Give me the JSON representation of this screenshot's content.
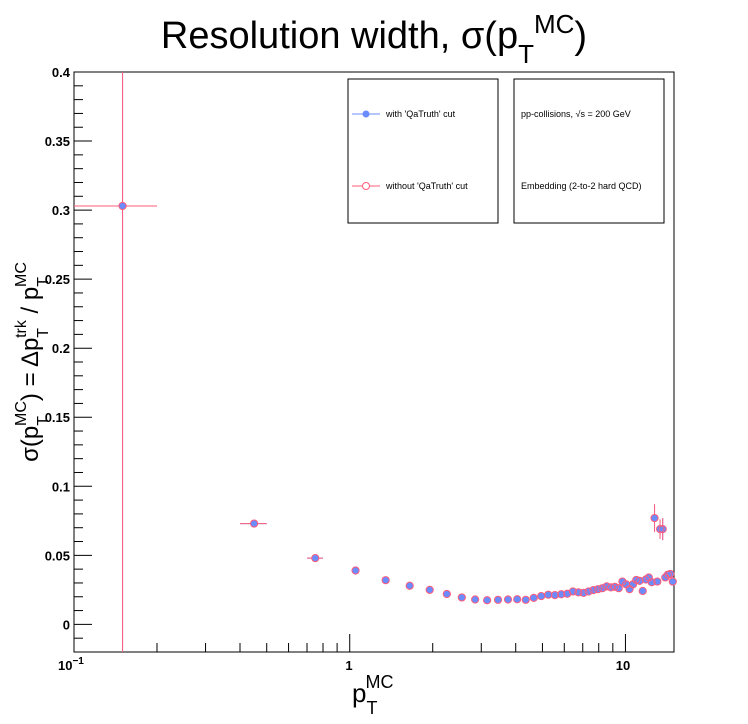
{
  "colors": {
    "series_with": "#6b8cff",
    "series_without": "#ff5c7a",
    "frame": "#000000",
    "background": "#ffffff"
  },
  "chart_data": {
    "type": "scatter",
    "title_main": "Resolution width, σ(p",
    "title_sub": "T",
    "title_sup": "MC",
    "title_close": ")",
    "xlabel": {
      "base": "p",
      "sub": "T",
      "sup": "MC"
    },
    "ylabel": {
      "s1": "σ(p",
      "s1_sub": "T",
      "s1_sup": "MC",
      "s2": ") = Δp",
      "s2_sub": "T",
      "s2_sup": "trk",
      "s3": " / p",
      "s3_sub": "T",
      "s3_sup": "MC"
    },
    "x_scale": "log",
    "xlim": [
      0.1,
      15
    ],
    "ylim": [
      -0.02,
      0.4
    ],
    "x_tick_labels": [
      {
        "value": 0.1,
        "base": "10",
        "exp": "−1"
      },
      {
        "value": 1,
        "text": "1"
      },
      {
        "value": 10,
        "text": "10"
      }
    ],
    "y_ticks": [
      0,
      0.05,
      0.1,
      0.15,
      0.2,
      0.25,
      0.3,
      0.35,
      0.4
    ],
    "y_tick_labels": [
      "0",
      "0.05",
      "0.1",
      "0.15",
      "0.2",
      "0.25",
      "0.3",
      "0.35",
      "0.4"
    ],
    "grid": false,
    "legend_placement": "top-right",
    "legend": {
      "series_with": "with 'QaTruth' cut",
      "series_without": "without 'QaTruth' cut",
      "info_line1": "pp-collisions, √s = 200 GeV",
      "info_line2": "Embedding (2-to-2 hard QCD)"
    },
    "series": [
      {
        "name": "with 'QaTruth' cut",
        "marker": "filled-circle",
        "points": [
          {
            "x": 0.15,
            "xlo": 0.1,
            "xhi": 0.2,
            "y": 0.303,
            "yerr": 0.5
          },
          {
            "x": 0.45,
            "xlo": 0.4,
            "xhi": 0.5,
            "y": 0.073,
            "yerr": 0.002
          },
          {
            "x": 0.75,
            "xlo": 0.7,
            "xhi": 0.8,
            "y": 0.048,
            "yerr": 0.001
          },
          {
            "x": 1.05,
            "y": 0.039
          },
          {
            "x": 1.35,
            "y": 0.032
          },
          {
            "x": 1.65,
            "y": 0.028
          },
          {
            "x": 1.95,
            "y": 0.025
          },
          {
            "x": 2.25,
            "y": 0.022
          },
          {
            "x": 2.55,
            "y": 0.0195
          },
          {
            "x": 2.85,
            "y": 0.018
          },
          {
            "x": 3.15,
            "y": 0.0175
          },
          {
            "x": 3.45,
            "y": 0.0178
          },
          {
            "x": 3.75,
            "y": 0.018
          },
          {
            "x": 4.05,
            "y": 0.0182
          },
          {
            "x": 4.35,
            "y": 0.0178
          },
          {
            "x": 4.65,
            "y": 0.0192
          },
          {
            "x": 4.95,
            "y": 0.0205
          },
          {
            "x": 5.25,
            "y": 0.0215
          },
          {
            "x": 5.55,
            "y": 0.0212
          },
          {
            "x": 5.85,
            "y": 0.0218
          },
          {
            "x": 6.15,
            "y": 0.0222
          },
          {
            "x": 6.45,
            "y": 0.0238
          },
          {
            "x": 6.75,
            "y": 0.0232
          },
          {
            "x": 7.05,
            "y": 0.0228
          },
          {
            "x": 7.35,
            "y": 0.0238
          },
          {
            "x": 7.65,
            "y": 0.0248
          },
          {
            "x": 7.95,
            "y": 0.0255
          },
          {
            "x": 8.25,
            "y": 0.0262
          },
          {
            "x": 8.55,
            "y": 0.0275
          },
          {
            "x": 8.85,
            "y": 0.0268
          },
          {
            "x": 9.15,
            "y": 0.0272
          },
          {
            "x": 9.45,
            "y": 0.0262
          },
          {
            "x": 9.75,
            "y": 0.031
          },
          {
            "x": 10.05,
            "y": 0.029
          },
          {
            "x": 10.35,
            "y": 0.0255
          },
          {
            "x": 10.65,
            "y": 0.029
          },
          {
            "x": 10.95,
            "y": 0.0322
          },
          {
            "x": 11.25,
            "y": 0.0315
          },
          {
            "x": 11.55,
            "y": 0.0242
          },
          {
            "x": 11.85,
            "y": 0.0325
          },
          {
            "x": 12.15,
            "y": 0.034
          },
          {
            "x": 12.45,
            "y": 0.0305
          },
          {
            "x": 12.75,
            "y": 0.077,
            "yerr": 0.01
          },
          {
            "x": 13.05,
            "y": 0.031
          },
          {
            "x": 13.35,
            "y": 0.069,
            "yerr": 0.007
          },
          {
            "x": 13.65,
            "y": 0.069,
            "yerr": 0.008
          },
          {
            "x": 13.95,
            "y": 0.034
          },
          {
            "x": 14.25,
            "y": 0.036
          },
          {
            "x": 14.55,
            "y": 0.0365
          },
          {
            "x": 14.85,
            "y": 0.031
          }
        ]
      },
      {
        "name": "without 'QaTruth' cut",
        "marker": "open-circle",
        "points": [
          {
            "x": 0.15,
            "xlo": 0.1,
            "xhi": 0.2,
            "y": 0.303,
            "yerr": 0.5
          },
          {
            "x": 0.45,
            "xlo": 0.4,
            "xhi": 0.5,
            "y": 0.073,
            "yerr": 0.002
          },
          {
            "x": 0.75,
            "xlo": 0.7,
            "xhi": 0.8,
            "y": 0.048,
            "yerr": 0.001
          },
          {
            "x": 1.05,
            "y": 0.039
          },
          {
            "x": 1.35,
            "y": 0.032
          },
          {
            "x": 1.65,
            "y": 0.028
          },
          {
            "x": 1.95,
            "y": 0.025
          },
          {
            "x": 2.25,
            "y": 0.022
          },
          {
            "x": 2.55,
            "y": 0.0195
          },
          {
            "x": 2.85,
            "y": 0.018
          },
          {
            "x": 3.15,
            "y": 0.0175
          },
          {
            "x": 3.45,
            "y": 0.0178
          },
          {
            "x": 3.75,
            "y": 0.018
          },
          {
            "x": 4.05,
            "y": 0.0182
          },
          {
            "x": 4.35,
            "y": 0.0178
          },
          {
            "x": 4.65,
            "y": 0.0192
          },
          {
            "x": 4.95,
            "y": 0.0205
          },
          {
            "x": 5.25,
            "y": 0.0215
          },
          {
            "x": 5.55,
            "y": 0.0212
          },
          {
            "x": 5.85,
            "y": 0.0218
          },
          {
            "x": 6.15,
            "y": 0.0222
          },
          {
            "x": 6.45,
            "y": 0.0238
          },
          {
            "x": 6.75,
            "y": 0.0232
          },
          {
            "x": 7.05,
            "y": 0.0228
          },
          {
            "x": 7.35,
            "y": 0.0238
          },
          {
            "x": 7.65,
            "y": 0.0248
          },
          {
            "x": 7.95,
            "y": 0.0255
          },
          {
            "x": 8.25,
            "y": 0.0262
          },
          {
            "x": 8.55,
            "y": 0.0275
          },
          {
            "x": 8.85,
            "y": 0.0268
          },
          {
            "x": 9.15,
            "y": 0.0272
          },
          {
            "x": 9.45,
            "y": 0.0262
          },
          {
            "x": 9.75,
            "y": 0.031
          },
          {
            "x": 10.05,
            "y": 0.029
          },
          {
            "x": 10.35,
            "y": 0.0255
          },
          {
            "x": 10.65,
            "y": 0.029
          },
          {
            "x": 10.95,
            "y": 0.0322
          },
          {
            "x": 11.25,
            "y": 0.0315
          },
          {
            "x": 11.55,
            "y": 0.0242
          },
          {
            "x": 11.85,
            "y": 0.0325
          },
          {
            "x": 12.15,
            "y": 0.034
          },
          {
            "x": 12.45,
            "y": 0.0305
          },
          {
            "x": 12.75,
            "y": 0.077,
            "yerr": 0.01
          },
          {
            "x": 13.05,
            "y": 0.031
          },
          {
            "x": 13.35,
            "y": 0.069,
            "yerr": 0.007
          },
          {
            "x": 13.65,
            "y": 0.069,
            "yerr": 0.008
          },
          {
            "x": 13.95,
            "y": 0.034
          },
          {
            "x": 14.25,
            "y": 0.036
          },
          {
            "x": 14.55,
            "y": 0.0365
          },
          {
            "x": 14.85,
            "y": 0.031
          }
        ]
      }
    ]
  }
}
